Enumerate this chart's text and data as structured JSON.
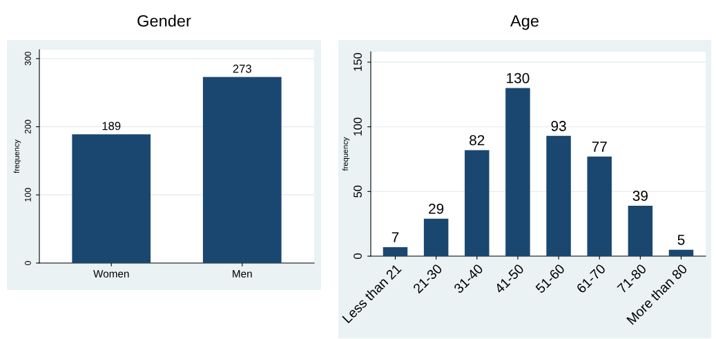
{
  "chart_data": [
    {
      "type": "bar",
      "title": "Gender",
      "ylabel": "frequency",
      "categories": [
        "Women",
        "Men"
      ],
      "values": [
        189,
        273
      ],
      "color": "#1a476f",
      "ylim": [
        0,
        313
      ],
      "yticks": [
        0,
        100,
        200,
        300
      ],
      "grid": "y",
      "data_labels": true
    },
    {
      "type": "bar",
      "title": "Age",
      "ylabel": "frequency",
      "categories": [
        "Less than 21",
        "21-30",
        "31-40",
        "41-50",
        "51-60",
        "61-70",
        "71-80",
        "More than 80"
      ],
      "values": [
        7,
        29,
        82,
        130,
        93,
        77,
        39,
        5
      ],
      "color": "#1a476f",
      "ylim": [
        0,
        158
      ],
      "yticks": [
        0,
        50,
        100,
        150
      ],
      "grid": "y",
      "data_labels": true
    }
  ]
}
